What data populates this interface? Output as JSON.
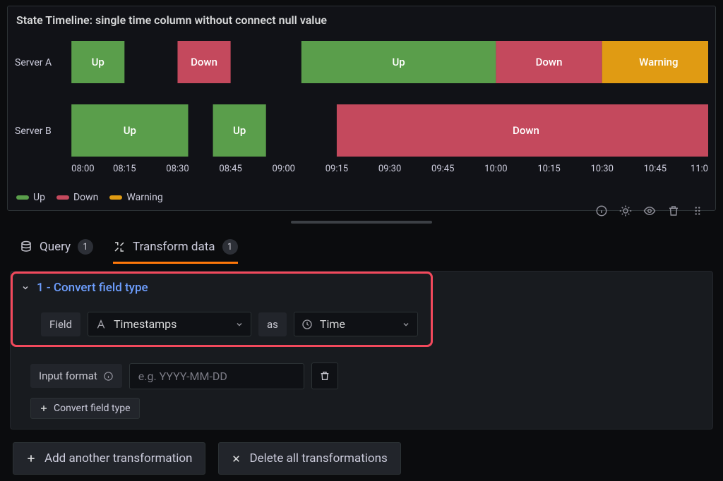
{
  "panel": {
    "title": "State Timeline: single time column without connect null value",
    "row_labels": [
      "Server A",
      "Server B"
    ],
    "x_ticks": [
      "08:00",
      "08:15",
      "08:30",
      "08:45",
      "09:00",
      "09:15",
      "09:30",
      "09:45",
      "10:00",
      "10:15",
      "10:30",
      "10:45",
      "11:00"
    ],
    "x_step_minutes": 15,
    "x_start": 480,
    "colors": {
      "Up": "#5a9e4b",
      "Down": "#c4495d",
      "Warning": "#e09b13"
    },
    "rows": [
      {
        "key": "Server A",
        "height": 60,
        "segments": [
          {
            "state": "Up",
            "start": 480,
            "end": 495
          },
          {
            "state": "Down",
            "start": 510,
            "end": 525
          },
          {
            "state": "Up",
            "start": 545,
            "end": 600
          },
          {
            "state": "Down",
            "start": 600,
            "end": 630
          },
          {
            "state": "Warning",
            "start": 630,
            "end": 662
          }
        ]
      },
      {
        "key": "Server B",
        "height": 74,
        "segments": [
          {
            "state": "Up",
            "start": 480,
            "end": 513
          },
          {
            "state": "Up",
            "start": 520,
            "end": 535
          },
          {
            "state": "Down",
            "start": 555,
            "end": 662
          }
        ]
      }
    ],
    "legend": [
      "Up",
      "Down",
      "Warning"
    ]
  },
  "tabs": {
    "query": {
      "label": "Query",
      "count": "1"
    },
    "transform": {
      "label": "Transform data",
      "count": "1"
    }
  },
  "transform": {
    "title": "1 - Convert field type",
    "field_label": "Field",
    "field_value": "Timestamps",
    "as_label": "as",
    "type_value": "Time",
    "input_format_label": "Input format",
    "input_format_placeholder": "e.g. YYYY-MM-DD",
    "add_row_label": "Convert field type"
  },
  "buttons": {
    "add": "Add another transformation",
    "delete": "Delete all transformations"
  }
}
